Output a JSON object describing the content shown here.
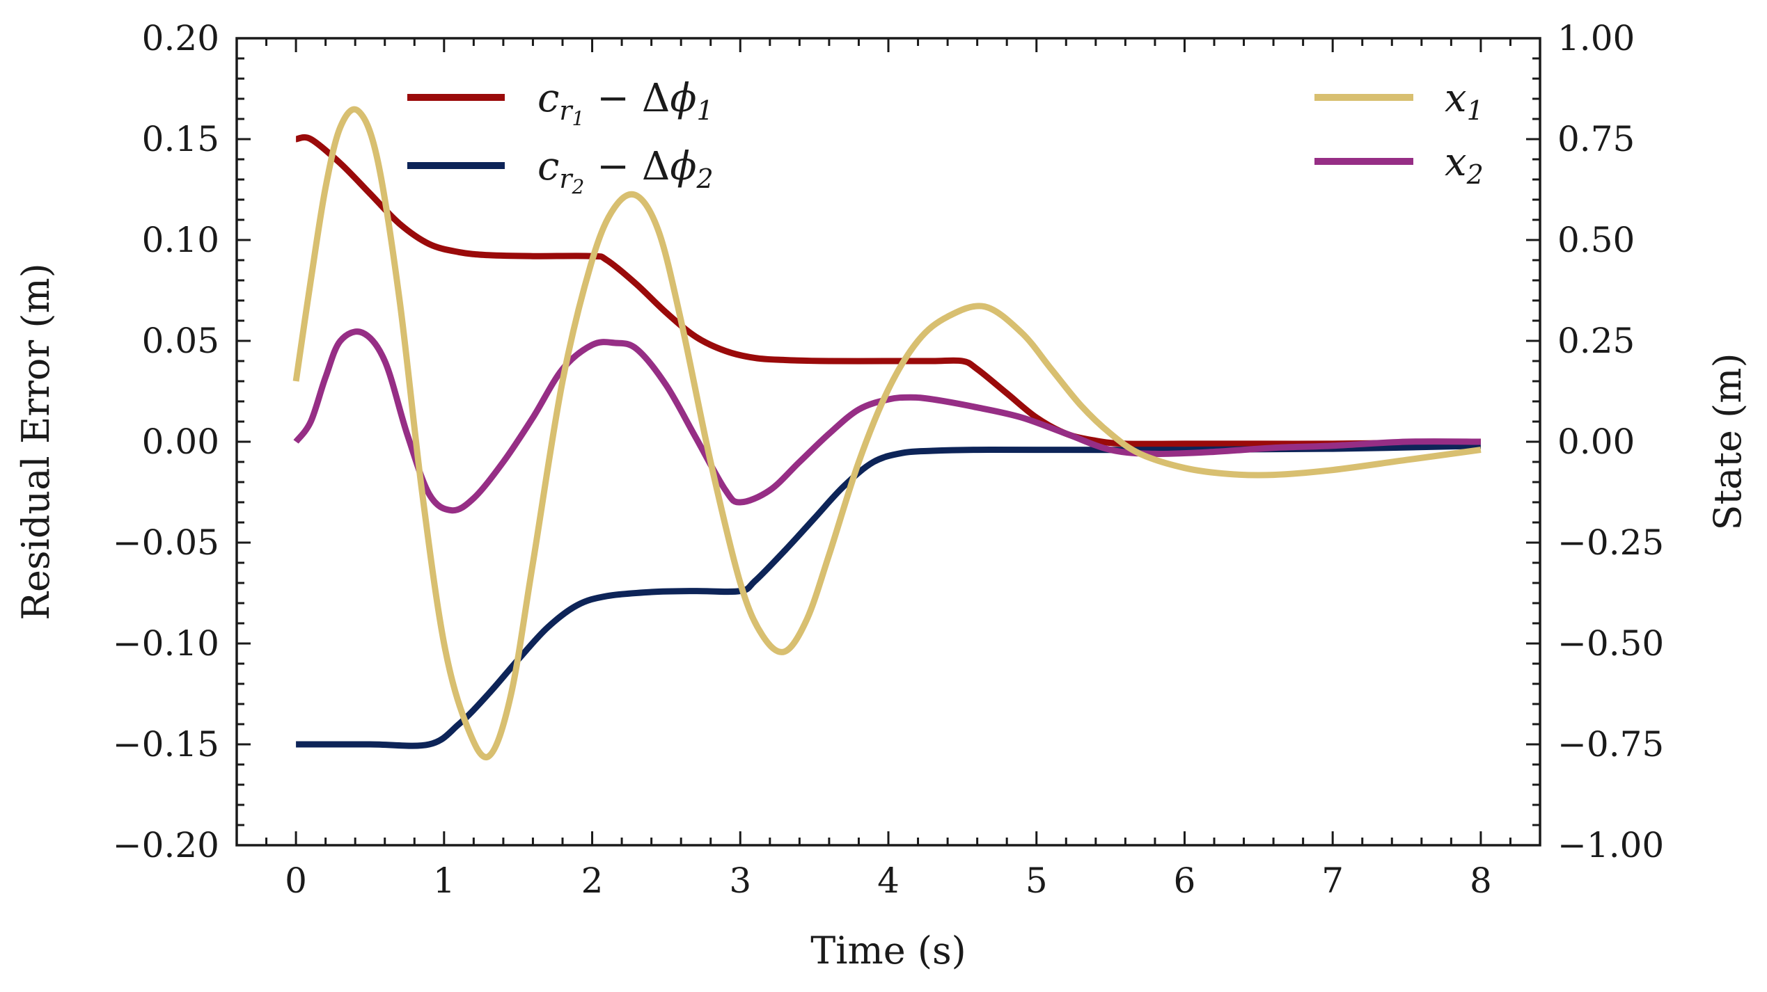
{
  "chart_data": {
    "type": "line",
    "xlabel": "Time (s)",
    "ylabel_left": "Residual Error (m)",
    "ylabel_right": "State (m)",
    "xlim": [
      -0.4,
      8.4
    ],
    "ylim_left": [
      -0.2,
      0.2
    ],
    "ylim_right": [
      -1.0,
      1.0
    ],
    "x_ticks": [
      "0",
      "1",
      "2",
      "3",
      "4",
      "5",
      "6",
      "7",
      "8"
    ],
    "y_ticks_left": [
      "0.20",
      "0.15",
      "0.10",
      "0.05",
      "0.00",
      "−0.05",
      "−0.10",
      "−0.15",
      "−0.20"
    ],
    "y_ticks_right": [
      "1.00",
      "0.75",
      "0.50",
      "0.25",
      "0.00",
      "−0.25",
      "−0.50",
      "−0.75",
      "−1.00"
    ],
    "grid": false,
    "legend_left": "top-left",
    "legend_right": "top-right",
    "series": [
      {
        "name": "c_{r_1} − Δϕ_1",
        "axis": "left",
        "color": "#9a0a0a",
        "x": [
          0,
          0.1,
          0.3,
          0.5,
          0.7,
          0.9,
          1.1,
          1.3,
          1.6,
          2.0,
          2.1,
          2.3,
          2.5,
          2.7,
          2.9,
          3.1,
          3.3,
          3.6,
          4.0,
          4.3,
          4.5,
          4.6,
          4.8,
          5.0,
          5.2,
          5.4,
          5.6,
          6.0,
          6.5,
          7.0,
          7.5,
          8.0
        ],
        "y": [
          0.15,
          0.15,
          0.138,
          0.123,
          0.108,
          0.098,
          0.094,
          0.0925,
          0.092,
          0.092,
          0.09,
          0.078,
          0.064,
          0.052,
          0.045,
          0.0415,
          0.0405,
          0.04,
          0.04,
          0.04,
          0.04,
          0.036,
          0.024,
          0.012,
          0.004,
          0.0005,
          -0.001,
          -0.001,
          -0.001,
          -0.001,
          -0.0005,
          0.0
        ]
      },
      {
        "name": "c_{r_2} − Δϕ_2",
        "axis": "left",
        "color": "#0d2458",
        "x": [
          0,
          0.5,
          0.9,
          1.1,
          1.3,
          1.5,
          1.7,
          1.9,
          2.1,
          2.4,
          2.7,
          3.0,
          3.1,
          3.3,
          3.5,
          3.7,
          3.9,
          4.1,
          4.3,
          4.6,
          5.0,
          6.0,
          7.0,
          8.0
        ],
        "y": [
          -0.15,
          -0.15,
          -0.15,
          -0.14,
          -0.125,
          -0.108,
          -0.092,
          -0.081,
          -0.0765,
          -0.0745,
          -0.074,
          -0.074,
          -0.069,
          -0.054,
          -0.038,
          -0.022,
          -0.01,
          -0.0055,
          -0.0045,
          -0.004,
          -0.004,
          -0.004,
          -0.0035,
          -0.002
        ]
      },
      {
        "name": "x_1",
        "axis": "right",
        "color": "#d8bf70",
        "x": [
          0,
          0.1,
          0.2,
          0.3,
          0.42,
          0.55,
          0.7,
          0.85,
          1.0,
          1.15,
          1.3,
          1.45,
          1.6,
          1.8,
          2.0,
          2.15,
          2.3,
          2.45,
          2.6,
          2.8,
          3.0,
          3.15,
          3.3,
          3.45,
          3.6,
          3.8,
          4.0,
          4.2,
          4.4,
          4.65,
          4.9,
          5.1,
          5.3,
          5.5,
          5.7,
          6.0,
          6.3,
          6.6,
          7.0,
          7.5,
          8.0
        ],
        "y": [
          0.15,
          0.4,
          0.63,
          0.78,
          0.82,
          0.7,
          0.35,
          -0.12,
          -0.5,
          -0.7,
          -0.78,
          -0.63,
          -0.3,
          0.15,
          0.45,
          0.58,
          0.61,
          0.52,
          0.3,
          -0.05,
          -0.35,
          -0.48,
          -0.52,
          -0.44,
          -0.28,
          -0.05,
          0.13,
          0.25,
          0.31,
          0.335,
          0.27,
          0.18,
          0.09,
          0.02,
          -0.03,
          -0.065,
          -0.08,
          -0.082,
          -0.07,
          -0.045,
          -0.02
        ]
      },
      {
        "name": "x_2",
        "axis": "right",
        "color": "#962e85",
        "x": [
          0,
          0.1,
          0.2,
          0.3,
          0.45,
          0.6,
          0.75,
          0.9,
          1.05,
          1.2,
          1.4,
          1.6,
          1.8,
          2.0,
          2.15,
          2.3,
          2.5,
          2.7,
          2.9,
          3.0,
          3.2,
          3.4,
          3.6,
          3.8,
          4.0,
          4.15,
          4.3,
          4.6,
          4.9,
          5.2,
          5.5,
          5.8,
          6.2,
          6.6,
          7.0,
          7.5,
          8.0
        ],
        "y": [
          0.0,
          0.05,
          0.16,
          0.25,
          0.27,
          0.2,
          0.02,
          -0.13,
          -0.17,
          -0.14,
          -0.05,
          0.06,
          0.18,
          0.24,
          0.245,
          0.23,
          0.14,
          0.01,
          -0.12,
          -0.15,
          -0.12,
          -0.05,
          0.02,
          0.08,
          0.105,
          0.11,
          0.105,
          0.085,
          0.06,
          0.02,
          -0.02,
          -0.03,
          -0.025,
          -0.015,
          -0.01,
          0.0,
          0.0
        ]
      }
    ],
    "legend_entries": [
      {
        "base": "c",
        "sub": "r",
        "subsub": "1",
        "op": " − Δ",
        "phi": "ϕ",
        "phisub": "1"
      },
      {
        "base": "c",
        "sub": "r",
        "subsub": "2",
        "op": " − Δ",
        "phi": "ϕ",
        "phisub": "2"
      },
      {
        "base": "x",
        "sub": "1"
      },
      {
        "base": "x",
        "sub": "2"
      }
    ]
  }
}
